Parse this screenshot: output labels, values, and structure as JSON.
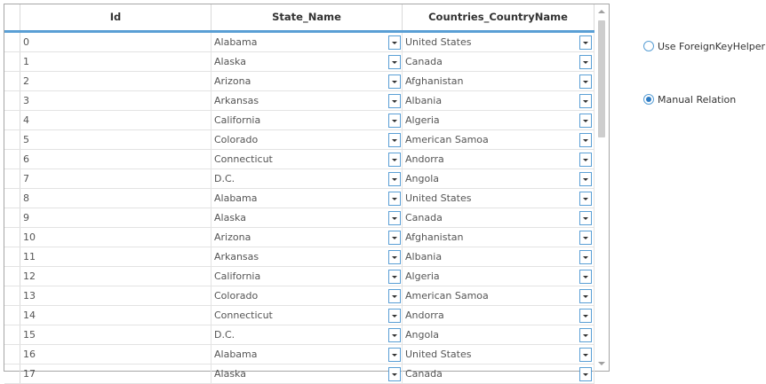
{
  "grid": {
    "columns": [
      {
        "label": "Id"
      },
      {
        "label": "State_Name"
      },
      {
        "label": "Countries_CountryName"
      }
    ],
    "rows": [
      {
        "id": "0",
        "state": "Alabama",
        "country": "United States"
      },
      {
        "id": "1",
        "state": "Alaska",
        "country": "Canada"
      },
      {
        "id": "2",
        "state": "Arizona",
        "country": "Afghanistan"
      },
      {
        "id": "3",
        "state": "Arkansas",
        "country": "Albania"
      },
      {
        "id": "4",
        "state": "California",
        "country": "Algeria"
      },
      {
        "id": "5",
        "state": "Colorado",
        "country": "American Samoa"
      },
      {
        "id": "6",
        "state": "Connecticut",
        "country": "Andorra"
      },
      {
        "id": "7",
        "state": "D.C.",
        "country": "Angola"
      },
      {
        "id": "8",
        "state": "Alabama",
        "country": "United States"
      },
      {
        "id": "9",
        "state": "Alaska",
        "country": "Canada"
      },
      {
        "id": "10",
        "state": "Arizona",
        "country": "Afghanistan"
      },
      {
        "id": "11",
        "state": "Arkansas",
        "country": "Albania"
      },
      {
        "id": "12",
        "state": "California",
        "country": "Algeria"
      },
      {
        "id": "13",
        "state": "Colorado",
        "country": "American Samoa"
      },
      {
        "id": "14",
        "state": "Connecticut",
        "country": "Andorra"
      },
      {
        "id": "15",
        "state": "D.C.",
        "country": "Angola"
      },
      {
        "id": "16",
        "state": "Alabama",
        "country": "United States"
      },
      {
        "id": "17",
        "state": "Alaska",
        "country": "Canada"
      }
    ]
  },
  "options": {
    "foreign_key_helper": {
      "label": "Use ForeignKeyHelper",
      "checked": false
    },
    "manual_relation": {
      "label": "Manual Relation",
      "checked": true
    }
  },
  "colors": {
    "accent": "#5a9fd5",
    "radio_fill": "#2e7cc4"
  }
}
